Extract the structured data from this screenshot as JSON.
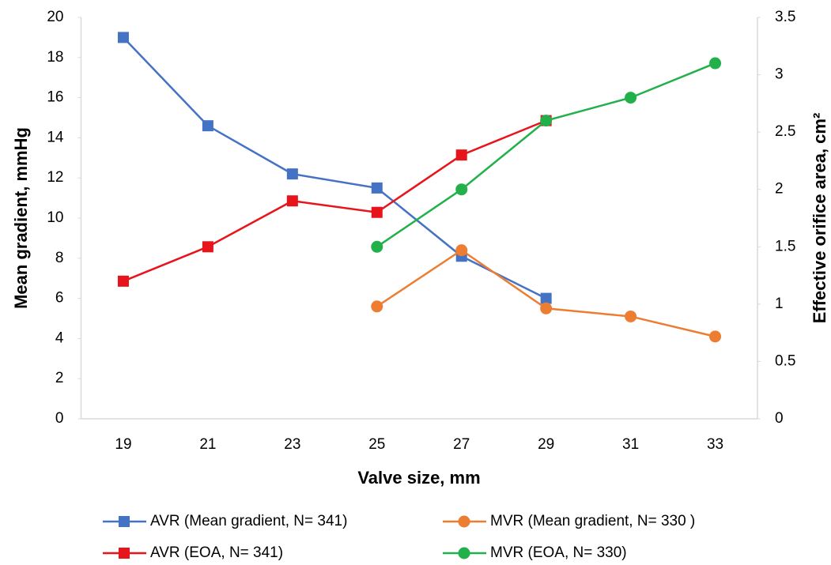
{
  "chart_data": {
    "type": "line",
    "x_label": "Valve size, mm",
    "y_label": "Mean gradient, mmHg",
    "y2_label": "Effective orifice area, cm²",
    "categories": [
      "19",
      "21",
      "23",
      "25",
      "27",
      "29",
      "31",
      "33"
    ],
    "series": [
      {
        "name": "AVR (Mean gradient, N= 341)",
        "color": "#4472c4",
        "marker": "square",
        "values": [
          19,
          14.6,
          12.2,
          11.5,
          8.1,
          6.0,
          null,
          null
        ]
      },
      {
        "name": "MVR (Mean gradient, N= 330 )",
        "color": "#ed7d31",
        "marker": "circle",
        "values": [
          null,
          null,
          null,
          5.6,
          8.4,
          5.5,
          5.1,
          4.1
        ]
      },
      {
        "name": "AVR (EOA, N= 341)",
        "color": "#e8141b",
        "marker": "square",
        "axis": "y2",
        "values": [
          1.2,
          1.5,
          1.9,
          1.8,
          2.3,
          2.6,
          null,
          null
        ]
      },
      {
        "name": "MVR (EOA, N= 330)",
        "color": "#22b04b",
        "marker": "circle",
        "axis": "y2",
        "values": [
          null,
          null,
          null,
          1.5,
          2.0,
          2.6,
          2.8,
          3.1
        ]
      }
    ],
    "ylim": [
      0,
      20
    ],
    "yticks": [
      0,
      2,
      4,
      6,
      8,
      10,
      12,
      14,
      16,
      18,
      20
    ],
    "y2lim": [
      0,
      3.5
    ],
    "y2ticks": [
      0,
      0.5,
      1,
      1.5,
      2,
      2.5,
      3,
      3.5
    ],
    "legend": "bottom"
  }
}
